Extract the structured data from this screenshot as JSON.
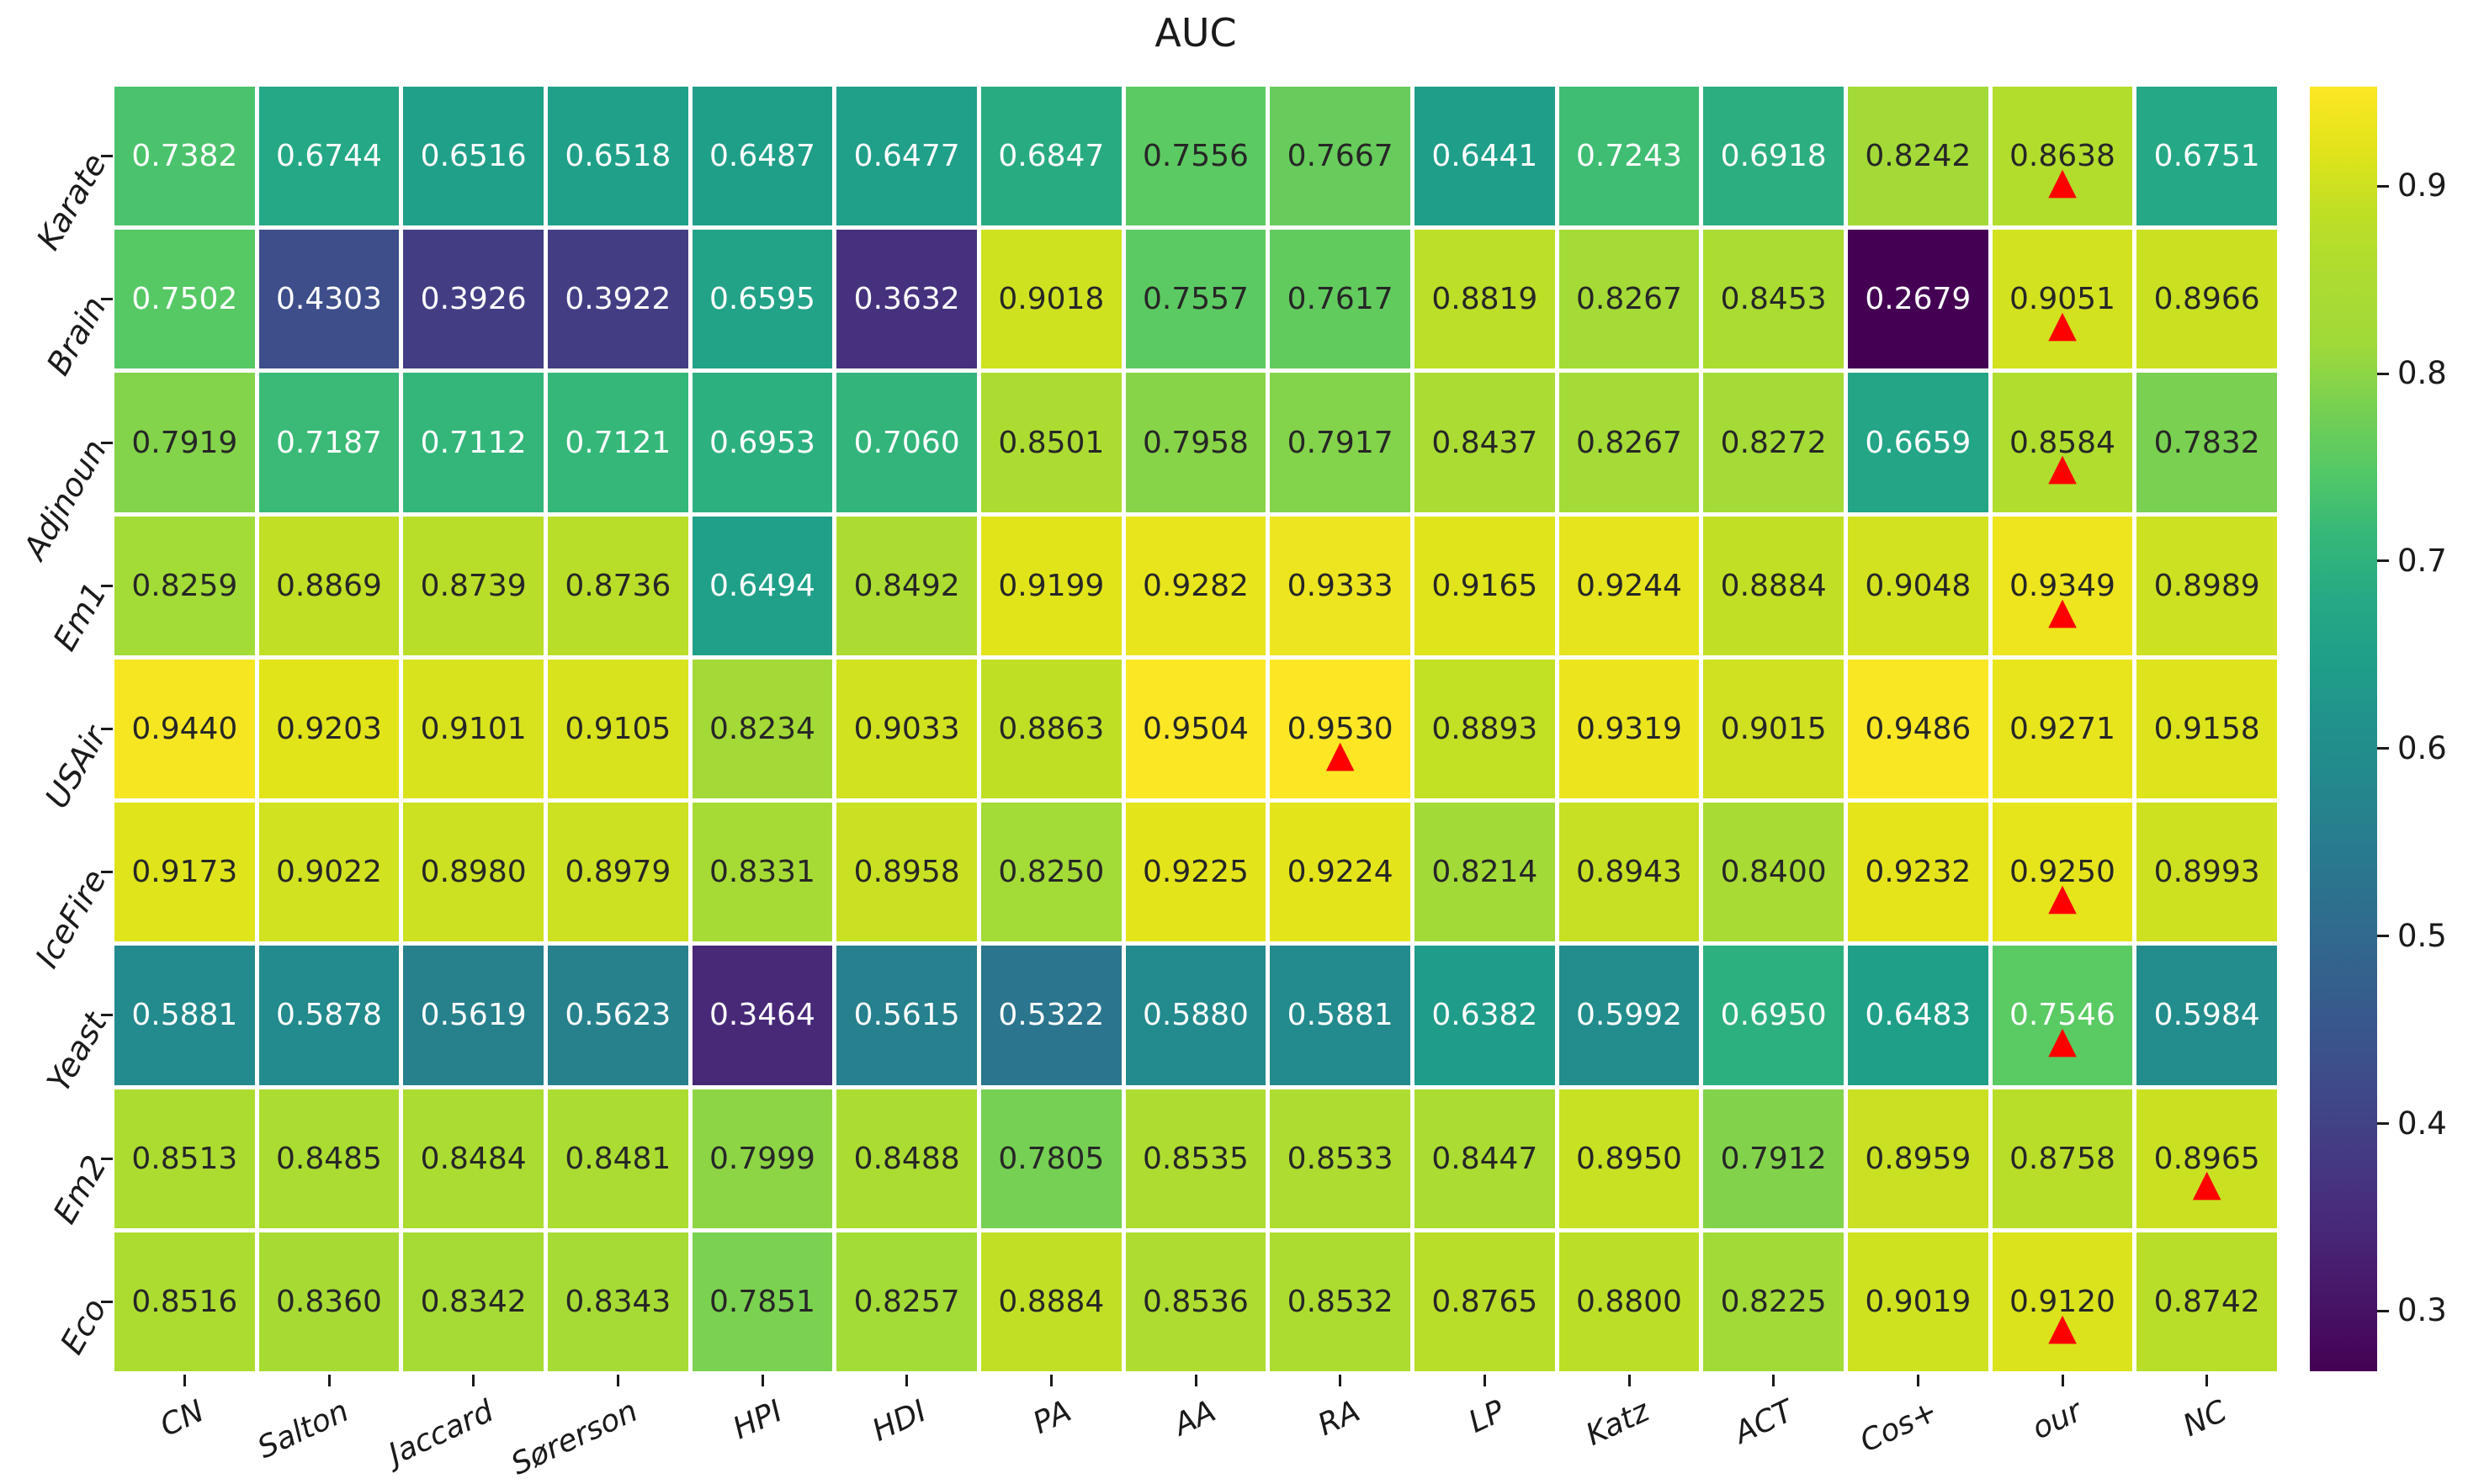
{
  "title": "AUC",
  "chart_data": {
    "type": "heatmap",
    "title": "AUC",
    "rows": [
      "Karate",
      "Brain",
      "Adjnoun",
      "Em1",
      "USAir",
      "IceFire",
      "Yeast",
      "Em2",
      "Eco"
    ],
    "columns": [
      "CN",
      "Salton",
      "Jaccard",
      "Sørerson",
      "HPI",
      "HDI",
      "PA",
      "AA",
      "RA",
      "LP",
      "Katz",
      "ACT",
      "Cos+",
      "our",
      "NC"
    ],
    "values": [
      [
        0.7382,
        0.6744,
        0.6516,
        0.6518,
        0.6487,
        0.6477,
        0.6847,
        0.7556,
        0.7667,
        0.6441,
        0.7243,
        0.6918,
        0.8242,
        0.8638,
        0.6751
      ],
      [
        0.7502,
        0.4303,
        0.3926,
        0.3922,
        0.6595,
        0.3632,
        0.9018,
        0.7557,
        0.7617,
        0.8819,
        0.8267,
        0.8453,
        0.2679,
        0.9051,
        0.8966
      ],
      [
        0.7919,
        0.7187,
        0.7112,
        0.7121,
        0.6953,
        0.706,
        0.8501,
        0.7958,
        0.7917,
        0.8437,
        0.8267,
        0.8272,
        0.6659,
        0.8584,
        0.7832
      ],
      [
        0.8259,
        0.8869,
        0.8739,
        0.8736,
        0.6494,
        0.8492,
        0.9199,
        0.9282,
        0.9333,
        0.9165,
        0.9244,
        0.8884,
        0.9048,
        0.9349,
        0.8989
      ],
      [
        0.944,
        0.9203,
        0.9101,
        0.9105,
        0.8234,
        0.9033,
        0.8863,
        0.9504,
        0.953,
        0.8893,
        0.9319,
        0.9015,
        0.9486,
        0.9271,
        0.9158
      ],
      [
        0.9173,
        0.9022,
        0.898,
        0.8979,
        0.8331,
        0.8958,
        0.825,
        0.9225,
        0.9224,
        0.8214,
        0.8943,
        0.84,
        0.9232,
        0.925,
        0.8993
      ],
      [
        0.5881,
        0.5878,
        0.5619,
        0.5623,
        0.3464,
        0.5615,
        0.5322,
        0.588,
        0.5881,
        0.6382,
        0.5992,
        0.695,
        0.6483,
        0.7546,
        0.5984
      ],
      [
        0.8513,
        0.8485,
        0.8484,
        0.8481,
        0.7999,
        0.8488,
        0.7805,
        0.8535,
        0.8533,
        0.8447,
        0.895,
        0.7912,
        0.8959,
        0.8758,
        0.8965
      ],
      [
        0.8516,
        0.836,
        0.8342,
        0.8343,
        0.7851,
        0.8257,
        0.8884,
        0.8536,
        0.8532,
        0.8765,
        0.88,
        0.8225,
        0.9019,
        0.912,
        0.8742
      ]
    ],
    "value_format_decimals": 4,
    "best_marker_col_per_row": [
      13,
      13,
      13,
      13,
      8,
      13,
      13,
      14,
      13
    ],
    "marker_glyph": "▲",
    "marker_color": "#ff0000",
    "colormap": "viridis",
    "vmin": 0.2679,
    "vmax": 0.953,
    "colorbar_ticks": [
      0.9,
      0.8,
      0.7,
      0.6,
      0.5,
      0.4,
      0.3
    ],
    "legend_position": "right",
    "grid_line_color": "#ffffff"
  }
}
